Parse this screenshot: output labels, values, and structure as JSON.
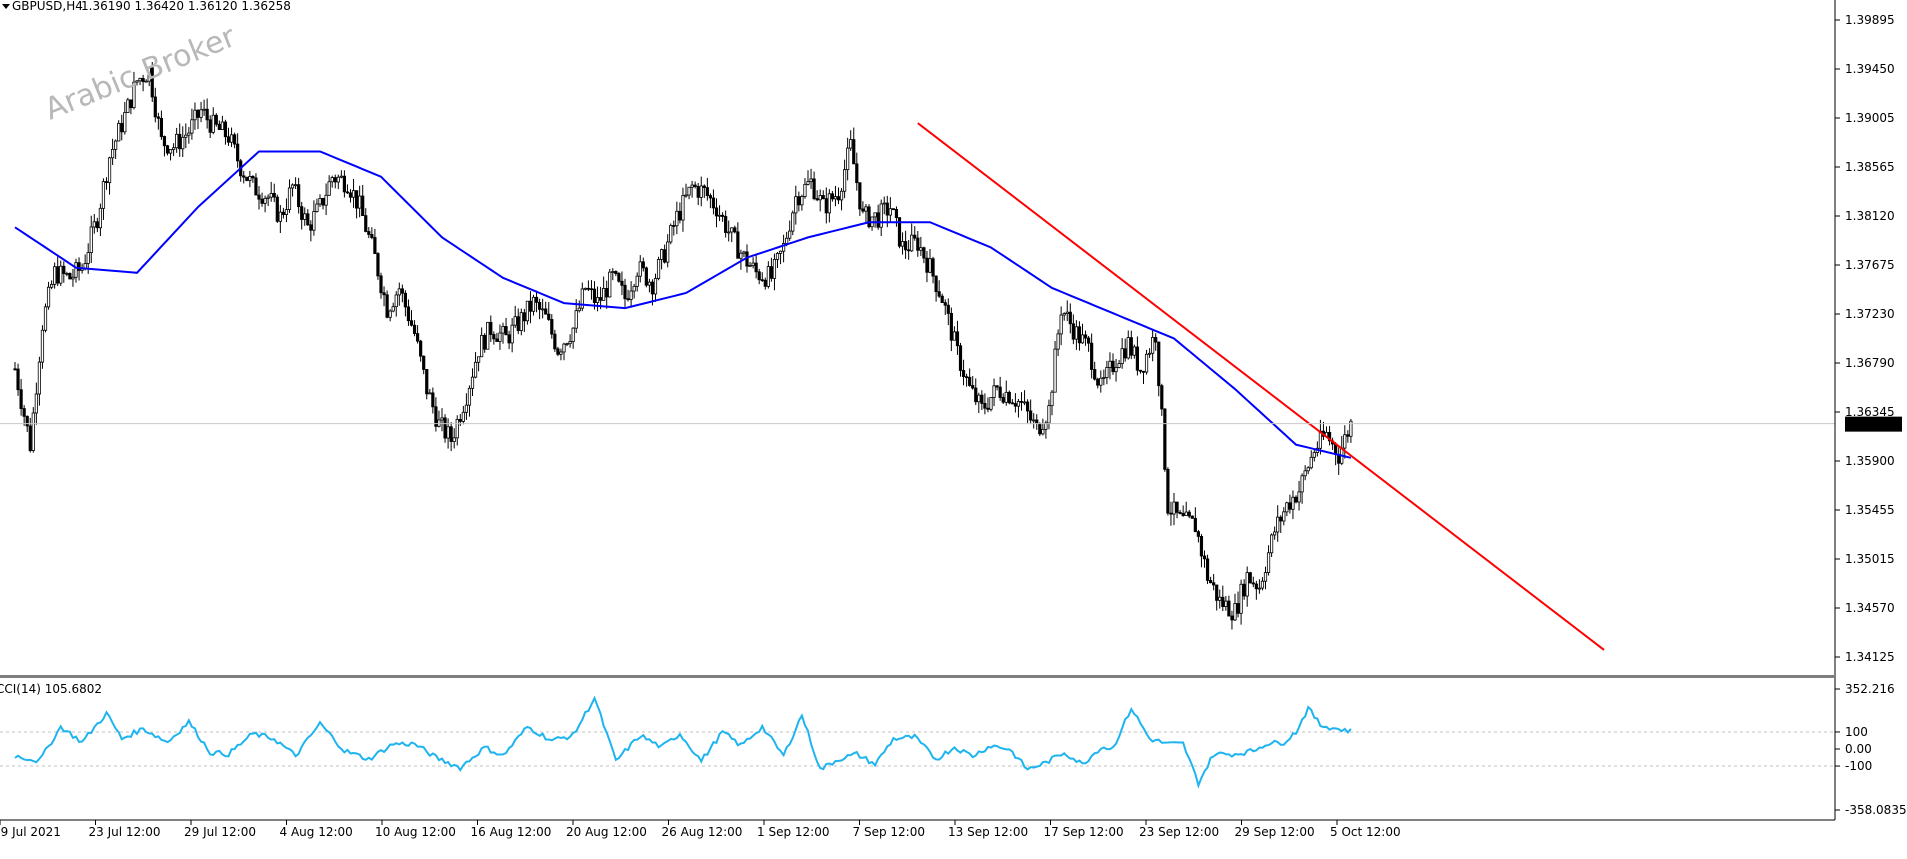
{
  "header": {
    "symbol": "GBPUSD,H4",
    "ohlc": "1.36190 1.36420 1.36120 1.36258"
  },
  "watermark": "Arabic Broker",
  "cci_header": "CCI(14) 105.6802",
  "current_price_label": "1.36258",
  "colors": {
    "candle": "#000000",
    "moving_average": "#0000ff",
    "trendline": "#ff0000",
    "cci_line": "#1eb4f0",
    "price_tag_bg": "#000000",
    "price_tag_text": "#ffffff"
  },
  "chart_data": [
    {
      "type": "candlestick",
      "title": "GBPUSD,H4",
      "ohlc_last": {
        "open": 1.3619,
        "high": 1.3642,
        "low": 1.3612,
        "close": 1.36258
      },
      "ylim": [
        1.3395,
        1.4025
      ],
      "y_ticks": [
        "1.39895",
        "1.39450",
        "1.39005",
        "1.38565",
        "1.38120",
        "1.37675",
        "1.37230",
        "1.36790",
        "1.36345",
        "1.35900",
        "1.35455",
        "1.35015",
        "1.34570",
        "1.34125"
      ],
      "x_ticks": [
        "19 Jul 2021",
        "23 Jul 12:00",
        "29 Jul 12:00",
        "4 Aug 12:00",
        "10 Aug 12:00",
        "16 Aug 12:00",
        "20 Aug 12:00",
        "26 Aug 12:00",
        "1 Sep 12:00",
        "7 Sep 12:00",
        "13 Sep 12:00",
        "17 Sep 12:00",
        "23 Sep 12:00",
        "29 Sep 12:00",
        "5 Oct 12:00"
      ],
      "current_price": 1.36258,
      "close_path": [
        [
          0,
          1.368
        ],
        [
          5,
          1.3605
        ],
        [
          9,
          1.3725
        ],
        [
          13,
          1.3775
        ],
        [
          18,
          1.377
        ],
        [
          22,
          1.378
        ],
        [
          27,
          1.383
        ],
        [
          31,
          1.389
        ],
        [
          36,
          1.393
        ],
        [
          40,
          1.3965
        ],
        [
          44,
          1.3975
        ],
        [
          48,
          1.3905
        ],
        [
          52,
          1.39
        ],
        [
          57,
          1.3915
        ],
        [
          61,
          1.3935
        ],
        [
          65,
          1.392
        ],
        [
          70,
          1.391
        ],
        [
          74,
          1.388
        ],
        [
          78,
          1.386
        ],
        [
          83,
          1.385
        ],
        [
          87,
          1.383
        ],
        [
          91,
          1.386
        ],
        [
          96,
          1.382
        ],
        [
          100,
          1.384
        ],
        [
          104,
          1.387
        ],
        [
          109,
          1.3865
        ],
        [
          113,
          1.384
        ],
        [
          118,
          1.379
        ],
        [
          122,
          1.374
        ],
        [
          126,
          1.376
        ],
        [
          131,
          1.3715
        ],
        [
          135,
          1.366
        ],
        [
          139,
          1.3625
        ],
        [
          143,
          1.361
        ],
        [
          148,
          1.3655
        ],
        [
          152,
          1.37
        ],
        [
          156,
          1.372
        ],
        [
          161,
          1.371
        ],
        [
          165,
          1.3725
        ],
        [
          170,
          1.3745
        ],
        [
          174,
          1.373
        ],
        [
          178,
          1.37
        ],
        [
          183,
          1.372
        ],
        [
          187,
          1.376
        ],
        [
          191,
          1.3745
        ],
        [
          196,
          1.377
        ],
        [
          200,
          1.375
        ],
        [
          204,
          1.378
        ],
        [
          209,
          1.3765
        ],
        [
          213,
          1.3795
        ],
        [
          217,
          1.383
        ],
        [
          222,
          1.386
        ],
        [
          226,
          1.3855
        ],
        [
          230,
          1.384
        ],
        [
          235,
          1.381
        ],
        [
          239,
          1.379
        ],
        [
          243,
          1.3775
        ],
        [
          248,
          1.377
        ],
        [
          252,
          1.38
        ],
        [
          256,
          1.385
        ],
        [
          261,
          1.3865
        ],
        [
          265,
          1.384
        ],
        [
          270,
          1.3855
        ],
        [
          274,
          1.39
        ],
        [
          278,
          1.383
        ],
        [
          283,
          1.383
        ],
        [
          287,
          1.384
        ],
        [
          291,
          1.38
        ],
        [
          296,
          1.3805
        ],
        [
          300,
          1.378
        ],
        [
          304,
          1.375
        ],
        [
          309,
          1.3695
        ],
        [
          313,
          1.366
        ],
        [
          317,
          1.364
        ],
        [
          322,
          1.366
        ],
        [
          326,
          1.3655
        ],
        [
          330,
          1.3645
        ],
        [
          335,
          1.362
        ],
        [
          339,
          1.364
        ],
        [
          343,
          1.374
        ],
        [
          348,
          1.3715
        ],
        [
          352,
          1.37
        ],
        [
          356,
          1.366
        ],
        [
          361,
          1.369
        ],
        [
          365,
          1.3705
        ],
        [
          369,
          1.368
        ],
        [
          374,
          1.3715
        ],
        [
          378,
          1.3545
        ],
        [
          382,
          1.353
        ],
        [
          387,
          1.3525
        ],
        [
          391,
          1.3475
        ],
        [
          395,
          1.345
        ],
        [
          400,
          1.344
        ],
        [
          404,
          1.3475
        ],
        [
          408,
          1.3465
        ],
        [
          413,
          1.352
        ],
        [
          417,
          1.3545
        ],
        [
          421,
          1.356
        ],
        [
          426,
          1.36
        ],
        [
          430,
          1.3615
        ],
        [
          434,
          1.3595
        ],
        [
          438,
          1.3626
        ]
      ],
      "moving_average": [
        [
          0,
          1.382
        ],
        [
          20,
          1.378
        ],
        [
          40,
          1.3775
        ],
        [
          60,
          1.384
        ],
        [
          80,
          1.3895
        ],
        [
          100,
          1.3895
        ],
        [
          120,
          1.387
        ],
        [
          140,
          1.381
        ],
        [
          160,
          1.377
        ],
        [
          180,
          1.3745
        ],
        [
          200,
          1.374
        ],
        [
          220,
          1.3755
        ],
        [
          240,
          1.379
        ],
        [
          260,
          1.381
        ],
        [
          280,
          1.3825
        ],
        [
          300,
          1.3825
        ],
        [
          320,
          1.38
        ],
        [
          340,
          1.376
        ],
        [
          360,
          1.3735
        ],
        [
          380,
          1.371
        ],
        [
          400,
          1.366
        ],
        [
          420,
          1.3605
        ],
        [
          438,
          1.3592
        ]
      ],
      "trendline": [
        [
          296,
          1.3923
        ],
        [
          521,
          1.3402
        ]
      ]
    },
    {
      "type": "line",
      "title": "CCI(14) 105.6802",
      "series": [
        {
          "name": "CCI(14)",
          "last": 105.6802
        }
      ],
      "ylim": [
        -358.0835,
        352.216
      ],
      "y_ticks": [
        "352.216",
        "100",
        "0.00",
        "-100",
        "-358.0835"
      ],
      "levels": [
        100,
        -100
      ],
      "values": [
        [
          0,
          -40
        ],
        [
          8,
          -70
        ],
        [
          15,
          130
        ],
        [
          22,
          40
        ],
        [
          30,
          210
        ],
        [
          35,
          60
        ],
        [
          42,
          120
        ],
        [
          50,
          40
        ],
        [
          57,
          160
        ],
        [
          64,
          -20
        ],
        [
          70,
          -30
        ],
        [
          78,
          90
        ],
        [
          85,
          60
        ],
        [
          92,
          -40
        ],
        [
          100,
          150
        ],
        [
          108,
          -10
        ],
        [
          116,
          -60
        ],
        [
          124,
          30
        ],
        [
          131,
          30
        ],
        [
          138,
          -50
        ],
        [
          146,
          -110
        ],
        [
          154,
          10
        ],
        [
          160,
          -40
        ],
        [
          168,
          130
        ],
        [
          176,
          50
        ],
        [
          183,
          80
        ],
        [
          190,
          300
        ],
        [
          197,
          -70
        ],
        [
          205,
          80
        ],
        [
          212,
          10
        ],
        [
          218,
          90
        ],
        [
          225,
          -70
        ],
        [
          232,
          100
        ],
        [
          238,
          20
        ],
        [
          245,
          130
        ],
        [
          252,
          -40
        ],
        [
          258,
          200
        ],
        [
          264,
          -120
        ],
        [
          270,
          -60
        ],
        [
          276,
          -30
        ],
        [
          282,
          -90
        ],
        [
          288,
          60
        ],
        [
          295,
          70
        ],
        [
          302,
          -60
        ],
        [
          308,
          10
        ],
        [
          314,
          -40
        ],
        [
          320,
          20
        ],
        [
          326,
          0
        ],
        [
          332,
          -120
        ],
        [
          338,
          -80
        ],
        [
          344,
          -20
        ],
        [
          350,
          -90
        ],
        [
          356,
          10
        ],
        [
          360,
          5
        ],
        [
          366,
          240
        ],
        [
          372,
          60
        ],
        [
          378,
          30
        ],
        [
          383,
          30
        ],
        [
          388,
          -200
        ],
        [
          393,
          -30
        ],
        [
          400,
          -30
        ],
        [
          406,
          -10
        ],
        [
          410,
          30
        ],
        [
          416,
          40
        ],
        [
          420,
          100
        ],
        [
          424,
          240
        ],
        [
          428,
          140
        ],
        [
          433,
          120
        ],
        [
          438,
          106
        ]
      ]
    }
  ]
}
